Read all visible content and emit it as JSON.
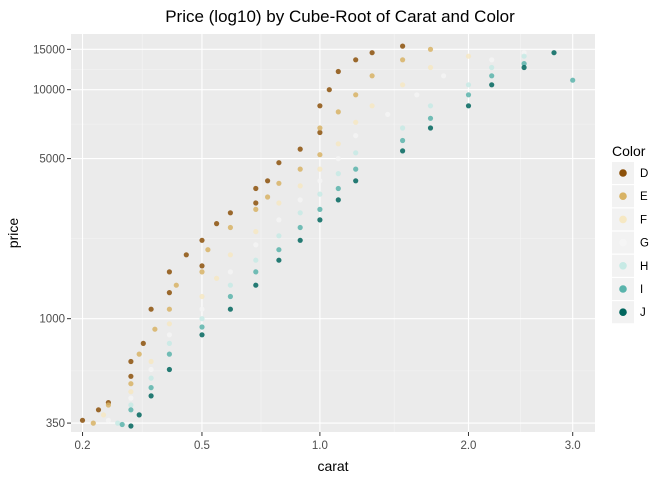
{
  "chart_data": {
    "type": "scatter",
    "title": "Price (log10) by Cube-Root of Carat and Color",
    "xlabel": "carat",
    "ylabel": "price",
    "x_scale": "cube-root",
    "y_scale": "log10",
    "xlim": [
      0.18,
      3.25
    ],
    "ylim": [
      320,
      17500
    ],
    "x_ticks": [
      0.2,
      0.5,
      1.0,
      2.0,
      3.0
    ],
    "x_tick_labels": [
      "0.2",
      "0.5",
      "1.0",
      "2.0",
      "3.0"
    ],
    "y_ticks": [
      350,
      1000,
      5000,
      10000,
      15000
    ],
    "y_tick_labels": [
      "350",
      "1000",
      "5000",
      "10000",
      "15000"
    ],
    "grid": true,
    "legend": {
      "title": "Color",
      "position": "right",
      "entries": [
        "D",
        "E",
        "F",
        "G",
        "H",
        "I",
        "J"
      ]
    },
    "series": [
      {
        "name": "D",
        "color": "#8c510a",
        "points": [
          [
            0.2,
            360
          ],
          [
            0.23,
            400
          ],
          [
            0.25,
            430
          ],
          [
            0.3,
            560
          ],
          [
            0.3,
            650
          ],
          [
            0.33,
            780
          ],
          [
            0.35,
            1100
          ],
          [
            0.4,
            1300
          ],
          [
            0.4,
            1600
          ],
          [
            0.45,
            1900
          ],
          [
            0.5,
            1700
          ],
          [
            0.5,
            2200
          ],
          [
            0.55,
            2600
          ],
          [
            0.6,
            2900
          ],
          [
            0.7,
            3200
          ],
          [
            0.7,
            3700
          ],
          [
            0.75,
            4000
          ],
          [
            0.8,
            4800
          ],
          [
            0.9,
            5500
          ],
          [
            1.0,
            6500
          ],
          [
            1.0,
            8500
          ],
          [
            1.05,
            10000
          ],
          [
            1.1,
            12000
          ],
          [
            1.2,
            13500
          ],
          [
            1.3,
            14500
          ],
          [
            1.5,
            15500
          ]
        ]
      },
      {
        "name": "E",
        "color": "#d8b365",
        "points": [
          [
            0.22,
            350
          ],
          [
            0.25,
            420
          ],
          [
            0.3,
            520
          ],
          [
            0.32,
            700
          ],
          [
            0.36,
            900
          ],
          [
            0.4,
            1100
          ],
          [
            0.42,
            1400
          ],
          [
            0.5,
            1600
          ],
          [
            0.52,
            2000
          ],
          [
            0.6,
            2500
          ],
          [
            0.7,
            3000
          ],
          [
            0.75,
            3400
          ],
          [
            0.8,
            3900
          ],
          [
            0.9,
            4500
          ],
          [
            1.0,
            5200
          ],
          [
            1.0,
            6800
          ],
          [
            1.1,
            8000
          ],
          [
            1.2,
            9500
          ],
          [
            1.3,
            11500
          ],
          [
            1.5,
            13500
          ],
          [
            1.7,
            15000
          ]
        ]
      },
      {
        "name": "F",
        "color": "#f6e8c3",
        "points": [
          [
            0.24,
            380
          ],
          [
            0.3,
            480
          ],
          [
            0.35,
            650
          ],
          [
            0.4,
            950
          ],
          [
            0.5,
            1250
          ],
          [
            0.55,
            1500
          ],
          [
            0.6,
            1900
          ],
          [
            0.7,
            2400
          ],
          [
            0.8,
            3200
          ],
          [
            0.9,
            3800
          ],
          [
            1.0,
            4500
          ],
          [
            1.1,
            5800
          ],
          [
            1.2,
            7200
          ],
          [
            1.3,
            8500
          ],
          [
            1.5,
            10500
          ],
          [
            1.7,
            12500
          ],
          [
            2.0,
            14000
          ]
        ]
      },
      {
        "name": "G",
        "color": "#f5f5f5",
        "points": [
          [
            0.25,
            360
          ],
          [
            0.3,
            450
          ],
          [
            0.35,
            600
          ],
          [
            0.4,
            850
          ],
          [
            0.5,
            1100
          ],
          [
            0.6,
            1600
          ],
          [
            0.7,
            2100
          ],
          [
            0.8,
            2700
          ],
          [
            0.9,
            3300
          ],
          [
            1.0,
            4000
          ],
          [
            1.1,
            5000
          ],
          [
            1.2,
            6300
          ],
          [
            1.4,
            7800
          ],
          [
            1.6,
            9500
          ],
          [
            1.8,
            11500
          ],
          [
            2.2,
            13500
          ],
          [
            2.5,
            14500
          ]
        ]
      },
      {
        "name": "H",
        "color": "#c7eae5",
        "points": [
          [
            0.27,
            350
          ],
          [
            0.3,
            420
          ],
          [
            0.35,
            550
          ],
          [
            0.4,
            780
          ],
          [
            0.5,
            1000
          ],
          [
            0.6,
            1400
          ],
          [
            0.7,
            1800
          ],
          [
            0.8,
            2300
          ],
          [
            0.9,
            2900
          ],
          [
            1.0,
            3500
          ],
          [
            1.1,
            4300
          ],
          [
            1.2,
            5300
          ],
          [
            1.5,
            6800
          ],
          [
            1.7,
            8500
          ],
          [
            2.0,
            10500
          ],
          [
            2.2,
            12500
          ],
          [
            2.5,
            14000
          ]
        ]
      },
      {
        "name": "I",
        "color": "#5ab4ac",
        "points": [
          [
            0.28,
            345
          ],
          [
            0.3,
            400
          ],
          [
            0.35,
            500
          ],
          [
            0.4,
            700
          ],
          [
            0.5,
            920
          ],
          [
            0.6,
            1250
          ],
          [
            0.7,
            1600
          ],
          [
            0.8,
            2000
          ],
          [
            0.9,
            2500
          ],
          [
            1.0,
            3000
          ],
          [
            1.1,
            3700
          ],
          [
            1.2,
            4500
          ],
          [
            1.5,
            6000
          ],
          [
            1.7,
            7500
          ],
          [
            2.0,
            9500
          ],
          [
            2.2,
            11500
          ],
          [
            2.5,
            13000
          ],
          [
            3.0,
            11000
          ]
        ]
      },
      {
        "name": "J",
        "color": "#01665e",
        "points": [
          [
            0.3,
            340
          ],
          [
            0.32,
            380
          ],
          [
            0.35,
            460
          ],
          [
            0.4,
            600
          ],
          [
            0.5,
            850
          ],
          [
            0.6,
            1100
          ],
          [
            0.7,
            1400
          ],
          [
            0.8,
            1800
          ],
          [
            0.9,
            2200
          ],
          [
            1.0,
            2700
          ],
          [
            1.1,
            3300
          ],
          [
            1.2,
            4000
          ],
          [
            1.5,
            5400
          ],
          [
            1.7,
            6800
          ],
          [
            2.0,
            8500
          ],
          [
            2.2,
            10500
          ],
          [
            2.5,
            12500
          ],
          [
            2.8,
            14500
          ]
        ]
      }
    ]
  }
}
